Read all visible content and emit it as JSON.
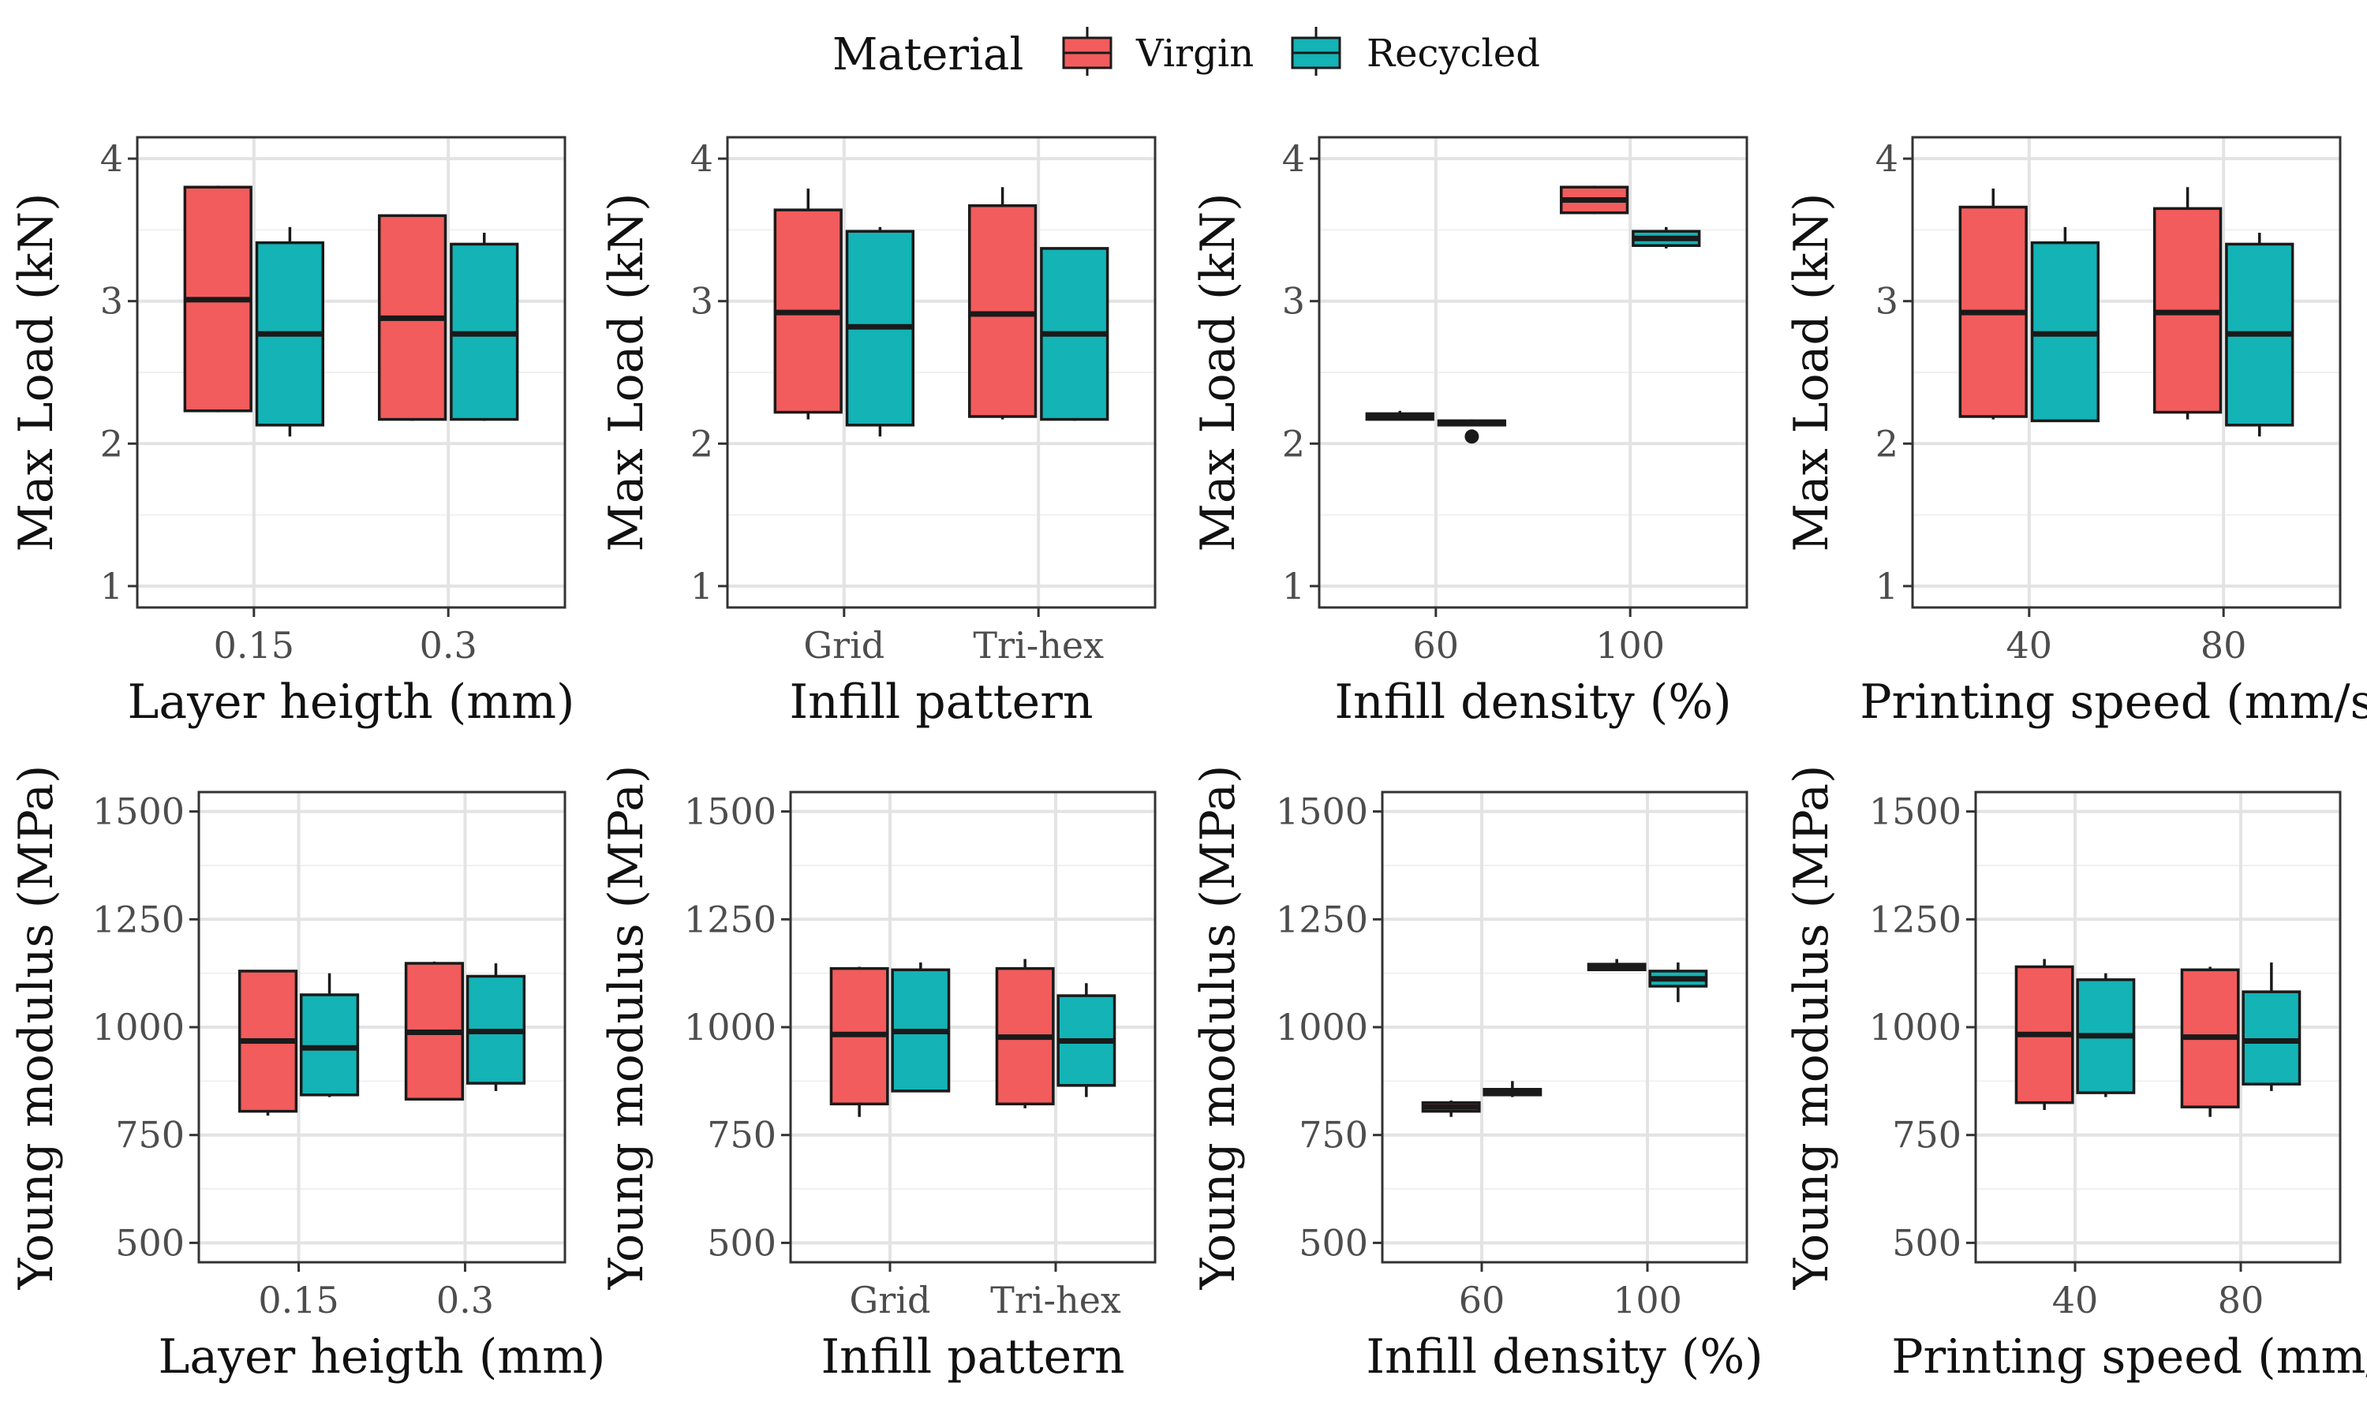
{
  "legend": {
    "title": "Material",
    "entries": [
      {
        "label": "Virgin",
        "color": "#F25C5C"
      },
      {
        "label": "Recycled",
        "color": "#14B3B6"
      }
    ]
  },
  "chart_data": [
    {
      "type": "boxplot",
      "ylabel": "Max Load (kN)",
      "xlabel": "Layer heigth (mm)",
      "categories": [
        "0.15",
        "0.3"
      ],
      "ylim": [
        0.85,
        4.15
      ],
      "yticks": [
        1,
        2,
        3,
        4
      ],
      "series": [
        {
          "name": "Virgin",
          "boxes": [
            {
              "min": 2.22,
              "q1": 2.23,
              "median": 3.01,
              "q3": 3.8,
              "max": 3.81
            },
            {
              "min": 2.16,
              "q1": 2.17,
              "median": 2.88,
              "q3": 3.6,
              "max": 3.61
            }
          ]
        },
        {
          "name": "Recycled",
          "boxes": [
            {
              "min": 2.05,
              "q1": 2.13,
              "median": 2.77,
              "q3": 3.41,
              "max": 3.52
            },
            {
              "min": 2.16,
              "q1": 2.17,
              "median": 2.77,
              "q3": 3.4,
              "max": 3.48
            }
          ]
        }
      ]
    },
    {
      "type": "boxplot",
      "ylabel": "Max Load (kN)",
      "xlabel": "Infill pattern",
      "categories": [
        "Grid",
        "Tri-hex"
      ],
      "ylim": [
        0.85,
        4.15
      ],
      "yticks": [
        1,
        2,
        3,
        4
      ],
      "series": [
        {
          "name": "Virgin",
          "boxes": [
            {
              "min": 2.17,
              "q1": 2.22,
              "median": 2.92,
              "q3": 3.64,
              "max": 3.79
            },
            {
              "min": 2.17,
              "q1": 2.19,
              "median": 2.91,
              "q3": 3.67,
              "max": 3.8
            }
          ]
        },
        {
          "name": "Recycled",
          "boxes": [
            {
              "min": 2.05,
              "q1": 2.13,
              "median": 2.82,
              "q3": 3.49,
              "max": 3.52
            },
            {
              "min": 2.16,
              "q1": 2.17,
              "median": 2.77,
              "q3": 3.37,
              "max": 3.37
            }
          ]
        }
      ]
    },
    {
      "type": "boxplot",
      "ylabel": "Max Load (kN)",
      "xlabel": "Infill density (%)",
      "categories": [
        "60",
        "100"
      ],
      "ylim": [
        0.85,
        4.15
      ],
      "yticks": [
        1,
        2,
        3,
        4
      ],
      "series": [
        {
          "name": "Virgin",
          "boxes": [
            {
              "min": 2.17,
              "q1": 2.17,
              "median": 2.19,
              "q3": 2.21,
              "max": 2.23
            },
            {
              "min": 3.61,
              "q1": 3.62,
              "median": 3.71,
              "q3": 3.8,
              "max": 3.81
            }
          ]
        },
        {
          "name": "Recycled",
          "boxes": [
            {
              "min": 2.13,
              "q1": 2.13,
              "median": 2.15,
              "q3": 2.16,
              "max": 2.17,
              "outliers": [
                2.05
              ]
            },
            {
              "min": 3.37,
              "q1": 3.39,
              "median": 3.44,
              "q3": 3.49,
              "max": 3.52
            }
          ]
        }
      ]
    },
    {
      "type": "boxplot",
      "ylabel": "Max Load (kN)",
      "xlabel": "Printing speed (mm/s)",
      "categories": [
        "40",
        "80"
      ],
      "ylim": [
        0.85,
        4.15
      ],
      "yticks": [
        1,
        2,
        3,
        4
      ],
      "series": [
        {
          "name": "Virgin",
          "boxes": [
            {
              "min": 2.17,
              "q1": 2.19,
              "median": 2.92,
              "q3": 3.66,
              "max": 3.79
            },
            {
              "min": 2.17,
              "q1": 2.22,
              "median": 2.92,
              "q3": 3.65,
              "max": 3.8
            }
          ]
        },
        {
          "name": "Recycled",
          "boxes": [
            {
              "min": 2.16,
              "q1": 2.16,
              "median": 2.77,
              "q3": 3.41,
              "max": 3.52
            },
            {
              "min": 2.05,
              "q1": 2.13,
              "median": 2.77,
              "q3": 3.4,
              "max": 3.48
            }
          ]
        }
      ]
    },
    {
      "type": "boxplot",
      "ylabel": "Young modulus (MPa)",
      "xlabel": "Layer heigth (mm)",
      "categories": [
        "0.15",
        "0.3"
      ],
      "ylim": [
        455,
        1545
      ],
      "yticks": [
        500,
        750,
        1000,
        1250,
        1500
      ],
      "series": [
        {
          "name": "Virgin",
          "boxes": [
            {
              "min": 795,
              "q1": 805,
              "median": 968,
              "q3": 1130,
              "max": 1130
            },
            {
              "min": 830,
              "q1": 833,
              "median": 988,
              "q3": 1148,
              "max": 1152
            }
          ]
        },
        {
          "name": "Recycled",
          "boxes": [
            {
              "min": 838,
              "q1": 843,
              "median": 952,
              "q3": 1075,
              "max": 1125
            },
            {
              "min": 852,
              "q1": 870,
              "median": 990,
              "q3": 1118,
              "max": 1148
            }
          ]
        }
      ]
    },
    {
      "type": "boxplot",
      "ylabel": "Young modulus (MPa)",
      "xlabel": "Infill pattern",
      "categories": [
        "Grid",
        "Tri-hex"
      ],
      "ylim": [
        455,
        1545
      ],
      "yticks": [
        500,
        750,
        1000,
        1250,
        1500
      ],
      "series": [
        {
          "name": "Virgin",
          "boxes": [
            {
              "min": 792,
              "q1": 822,
              "median": 983,
              "q3": 1136,
              "max": 1140
            },
            {
              "min": 812,
              "q1": 822,
              "median": 977,
              "q3": 1136,
              "max": 1158
            }
          ]
        },
        {
          "name": "Recycled",
          "boxes": [
            {
              "min": 852,
              "q1": 852,
              "median": 990,
              "q3": 1133,
              "max": 1150
            },
            {
              "min": 838,
              "q1": 865,
              "median": 968,
              "q3": 1073,
              "max": 1102
            }
          ]
        }
      ]
    },
    {
      "type": "boxplot",
      "ylabel": "Young modulus (MPa)",
      "xlabel": "Infill density (%)",
      "categories": [
        "60",
        "100"
      ],
      "ylim": [
        455,
        1545
      ],
      "yticks": [
        500,
        750,
        1000,
        1250,
        1500
      ],
      "series": [
        {
          "name": "Virgin",
          "boxes": [
            {
              "min": 792,
              "q1": 805,
              "median": 815,
              "q3": 825,
              "max": 830
            },
            {
              "min": 1132,
              "q1": 1133,
              "median": 1140,
              "q3": 1146,
              "max": 1158
            }
          ]
        },
        {
          "name": "Recycled",
          "boxes": [
            {
              "min": 838,
              "q1": 843,
              "median": 850,
              "q3": 856,
              "max": 875
            },
            {
              "min": 1058,
              "q1": 1095,
              "median": 1112,
              "q3": 1130,
              "max": 1150
            }
          ]
        }
      ]
    },
    {
      "type": "boxplot",
      "ylabel": "Young modulus (MPa)",
      "xlabel": "Printing speed (mm/s)",
      "categories": [
        "40",
        "80"
      ],
      "ylim": [
        455,
        1545
      ],
      "yticks": [
        500,
        750,
        1000,
        1250,
        1500
      ],
      "series": [
        {
          "name": "Virgin",
          "boxes": [
            {
              "min": 808,
              "q1": 825,
              "median": 983,
              "q3": 1140,
              "max": 1158
            },
            {
              "min": 792,
              "q1": 815,
              "median": 977,
              "q3": 1133,
              "max": 1140
            }
          ]
        },
        {
          "name": "Recycled",
          "boxes": [
            {
              "min": 838,
              "q1": 848,
              "median": 980,
              "q3": 1110,
              "max": 1125
            },
            {
              "min": 852,
              "q1": 868,
              "median": 968,
              "q3": 1082,
              "max": 1150
            }
          ]
        }
      ]
    }
  ]
}
